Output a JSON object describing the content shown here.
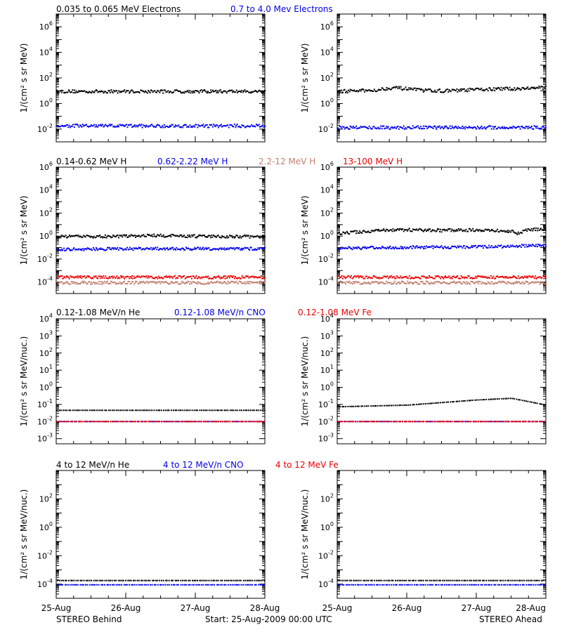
{
  "colors": {
    "black": "#000000",
    "blue": "#0000ee",
    "tan": "#c08070",
    "red": "#ee0000"
  },
  "footer": {
    "x_ticks": [
      "25-Aug",
      "26-Aug",
      "27-Aug",
      "28-Aug"
    ],
    "left_label": "STEREO Behind",
    "center_label": "Start: 25-Aug-2009 00:00 UTC",
    "right_label": "STEREO Ahead"
  },
  "chart_data": [
    {
      "type": "scatter",
      "row": 0,
      "spacecraft": "STEREO Behind",
      "ylabel": "1/(cm² s sr MeV)",
      "yscale": "log",
      "ylim_exp": [
        -3,
        7
      ],
      "ytick_exps": [
        -2,
        0,
        2,
        4,
        6
      ],
      "xlim_days": [
        0,
        3
      ],
      "series": [
        {
          "name": "0.035 to 0.065 MeV Electrons",
          "color": "#000000",
          "points": [
            [
              0,
              10
            ],
            [
              0.5,
              10
            ],
            [
              1.0,
              10
            ],
            [
              1.5,
              10
            ],
            [
              2.0,
              10
            ],
            [
              2.5,
              10
            ],
            [
              3.0,
              10
            ]
          ]
        },
        {
          "name": "0.7 to 4.0 Mev Electrons",
          "color": "#0000ee",
          "points": [
            [
              0,
              0.02
            ],
            [
              0.5,
              0.02
            ],
            [
              1.0,
              0.02
            ],
            [
              1.5,
              0.02
            ],
            [
              2.0,
              0.02
            ],
            [
              2.5,
              0.02
            ],
            [
              3.0,
              0.02
            ]
          ]
        }
      ]
    },
    {
      "type": "scatter",
      "row": 0,
      "spacecraft": "STEREO Ahead",
      "ylabel": "1/(cm² s sr MeV)",
      "yscale": "log",
      "ylim_exp": [
        -3,
        7
      ],
      "ytick_exps": [
        -2,
        0,
        2,
        4,
        6
      ],
      "xlim_days": [
        0,
        3
      ],
      "series": [
        {
          "name": "0.035 to 0.065 MeV Electrons",
          "color": "#000000",
          "points": [
            [
              0,
              10
            ],
            [
              0.5,
              12
            ],
            [
              0.8,
              20
            ],
            [
              1.2,
              12
            ],
            [
              1.6,
              11
            ],
            [
              2.0,
              14
            ],
            [
              2.5,
              16
            ],
            [
              3.0,
              20
            ]
          ]
        },
        {
          "name": "0.7 to 4.0 Mev Electrons",
          "color": "#0000ee",
          "points": [
            [
              0,
              0.015
            ],
            [
              0.5,
              0.015
            ],
            [
              1.0,
              0.015
            ],
            [
              1.5,
              0.015
            ],
            [
              2.0,
              0.015
            ],
            [
              2.5,
              0.015
            ],
            [
              3.0,
              0.015
            ]
          ]
        }
      ]
    },
    {
      "type": "scatter",
      "row": 1,
      "spacecraft": "STEREO Behind",
      "ylabel": "1/(cm² s sr MeV)",
      "yscale": "log",
      "ylim_exp": [
        -5,
        6
      ],
      "ytick_exps": [
        -4,
        -2,
        0,
        2,
        4,
        6
      ],
      "xlim_days": [
        0,
        3
      ],
      "series": [
        {
          "name": "0.14-0.62 MeV H",
          "color": "#000000",
          "points": [
            [
              0,
              1.0
            ],
            [
              1.0,
              1.1
            ],
            [
              1.3,
              1.3
            ],
            [
              2.0,
              1.1
            ],
            [
              3.0,
              1.0
            ]
          ]
        },
        {
          "name": "0.62-2.22 MeV H",
          "color": "#0000ee",
          "points": [
            [
              0,
              0.08
            ],
            [
              1.0,
              0.09
            ],
            [
              2.0,
              0.09
            ],
            [
              3.0,
              0.09
            ]
          ]
        },
        {
          "name": "2.2-12 MeV H",
          "color": "#c08070",
          "points": [
            [
              0,
              0.0001
            ],
            [
              1.0,
              0.0001
            ],
            [
              2.0,
              0.0001
            ],
            [
              3.0,
              0.0001
            ]
          ]
        },
        {
          "name": "13-100 MeV H",
          "color": "#ee0000",
          "points": [
            [
              0,
              0.0003
            ],
            [
              1.0,
              0.0003
            ],
            [
              2.0,
              0.0003
            ],
            [
              3.0,
              0.0003
            ]
          ]
        }
      ]
    },
    {
      "type": "scatter",
      "row": 1,
      "spacecraft": "STEREO Ahead",
      "ylabel": "1/(cm² s sr MeV)",
      "yscale": "log",
      "ylim_exp": [
        -5,
        6
      ],
      "ytick_exps": [
        -4,
        -2,
        0,
        2,
        4,
        6
      ],
      "xlim_days": [
        0,
        3
      ],
      "series": [
        {
          "name": "0.14-0.62 MeV H",
          "color": "#000000",
          "points": [
            [
              0,
              2.0
            ],
            [
              0.6,
              3.5
            ],
            [
              1.0,
              4.0
            ],
            [
              1.5,
              3.5
            ],
            [
              2.0,
              4.0
            ],
            [
              2.5,
              3.0
            ],
            [
              2.6,
              1.8
            ],
            [
              2.7,
              4.0
            ],
            [
              3.0,
              5.0
            ]
          ]
        },
        {
          "name": "0.62-2.22 MeV H",
          "color": "#0000ee",
          "points": [
            [
              0,
              0.1
            ],
            [
              1.0,
              0.12
            ],
            [
              2.0,
              0.13
            ],
            [
              3.0,
              0.18
            ]
          ]
        },
        {
          "name": "2.2-12 MeV H",
          "color": "#c08070",
          "points": [
            [
              0,
              0.0001
            ],
            [
              1.0,
              0.0001
            ],
            [
              2.0,
              0.0001
            ],
            [
              3.0,
              0.0001
            ]
          ]
        },
        {
          "name": "13-100 MeV H",
          "color": "#ee0000",
          "points": [
            [
              0,
              0.0003
            ],
            [
              1.0,
              0.0003
            ],
            [
              2.0,
              0.0003
            ],
            [
              3.0,
              0.0003
            ]
          ]
        }
      ]
    },
    {
      "type": "scatter",
      "row": 2,
      "spacecraft": "STEREO Behind",
      "ylabel": "1/(cm² s sr MeV/nuc.)",
      "yscale": "log",
      "ylim_exp": [
        -3.3,
        4
      ],
      "ytick_exps": [
        -3,
        -2,
        -1,
        0,
        1,
        2,
        3,
        4
      ],
      "xlim_days": [
        0,
        3
      ],
      "series": [
        {
          "name": "0.12-1.08 MeV/n He",
          "color": "#000000",
          "points": [
            [
              0,
              0.05
            ],
            [
              1.0,
              0.05
            ],
            [
              2.0,
              0.05
            ],
            [
              3.0,
              0.05
            ]
          ]
        },
        {
          "name": "0.12-1.08 MeV/n CNO",
          "color": "#0000ee",
          "points": [
            [
              0,
              0.011
            ],
            [
              1.0,
              0.011
            ],
            [
              2.0,
              0.011
            ],
            [
              3.0,
              0.011
            ]
          ]
        },
        {
          "name": "0.12-1.08 MeV Fe",
          "color": "#ee0000",
          "points": [
            [
              0,
              0.011
            ],
            [
              1.0,
              0.011
            ],
            [
              2.0,
              0.011
            ],
            [
              3.0,
              0.011
            ]
          ]
        }
      ]
    },
    {
      "type": "scatter",
      "row": 2,
      "spacecraft": "STEREO Ahead",
      "ylabel": "1/(cm² s sr MeV/nuc.)",
      "yscale": "log",
      "ylim_exp": [
        -3.3,
        4
      ],
      "ytick_exps": [
        -3,
        -2,
        -1,
        0,
        1,
        2,
        3,
        4
      ],
      "xlim_days": [
        0,
        3
      ],
      "series": [
        {
          "name": "0.12-1.08 MeV/n He",
          "color": "#000000",
          "points": [
            [
              0,
              0.08
            ],
            [
              1.0,
              0.1
            ],
            [
              2.0,
              0.2
            ],
            [
              2.5,
              0.25
            ],
            [
              3.0,
              0.1
            ]
          ]
        },
        {
          "name": "0.12-1.08 MeV/n CNO",
          "color": "#0000ee",
          "points": [
            [
              0,
              0.011
            ],
            [
              1.0,
              0.011
            ],
            [
              2.0,
              0.011
            ],
            [
              3.0,
              0.011
            ]
          ]
        },
        {
          "name": "0.12-1.08 MeV Fe",
          "color": "#ee0000",
          "points": [
            [
              0,
              0.011
            ],
            [
              1.0,
              0.011
            ],
            [
              2.0,
              0.011
            ],
            [
              3.0,
              0.011
            ]
          ]
        }
      ]
    },
    {
      "type": "scatter",
      "row": 3,
      "spacecraft": "STEREO Behind",
      "ylabel": "1/(cm² s sr MeV/nuc.)",
      "yscale": "log",
      "ylim_exp": [
        -5,
        4
      ],
      "ytick_exps": [
        -4,
        -2,
        0,
        2
      ],
      "xlim_days": [
        0,
        3
      ],
      "series": [
        {
          "name": "4 to 12 MeV/n He",
          "color": "#000000",
          "points": [
            [
              0,
              0.0002
            ],
            [
              1.0,
              0.0002
            ],
            [
              2.0,
              0.0002
            ],
            [
              3.0,
              0.0002
            ]
          ]
        },
        {
          "name": "4 to 12 MeV/n CNO",
          "color": "#0000ee",
          "points": [
            [
              0,
              0.0001
            ],
            [
              1.0,
              0.0001
            ],
            [
              2.0,
              0.0001
            ],
            [
              3.0,
              0.0001
            ]
          ]
        },
        {
          "name": "4 to 12 MeV Fe",
          "color": "#ee0000",
          "points": []
        }
      ]
    },
    {
      "type": "scatter",
      "row": 3,
      "spacecraft": "STEREO Ahead",
      "ylabel": "1/(cm² s sr MeV/nuc.)",
      "yscale": "log",
      "ylim_exp": [
        -5,
        4
      ],
      "ytick_exps": [
        -4,
        -2,
        0,
        2
      ],
      "xlim_days": [
        0,
        3
      ],
      "series": [
        {
          "name": "4 to 12 MeV/n He",
          "color": "#000000",
          "points": [
            [
              0,
              0.0002
            ],
            [
              1.0,
              0.0002
            ],
            [
              2.0,
              0.0002
            ],
            [
              3.0,
              0.0002
            ]
          ]
        },
        {
          "name": "4 to 12 MeV/n CNO",
          "color": "#0000ee",
          "points": [
            [
              0,
              0.0001
            ],
            [
              1.0,
              0.0001
            ],
            [
              2.0,
              0.0001
            ],
            [
              3.0,
              0.0001
            ]
          ]
        },
        {
          "name": "4 to 12 MeV Fe",
          "color": "#ee0000",
          "points": []
        }
      ]
    }
  ]
}
